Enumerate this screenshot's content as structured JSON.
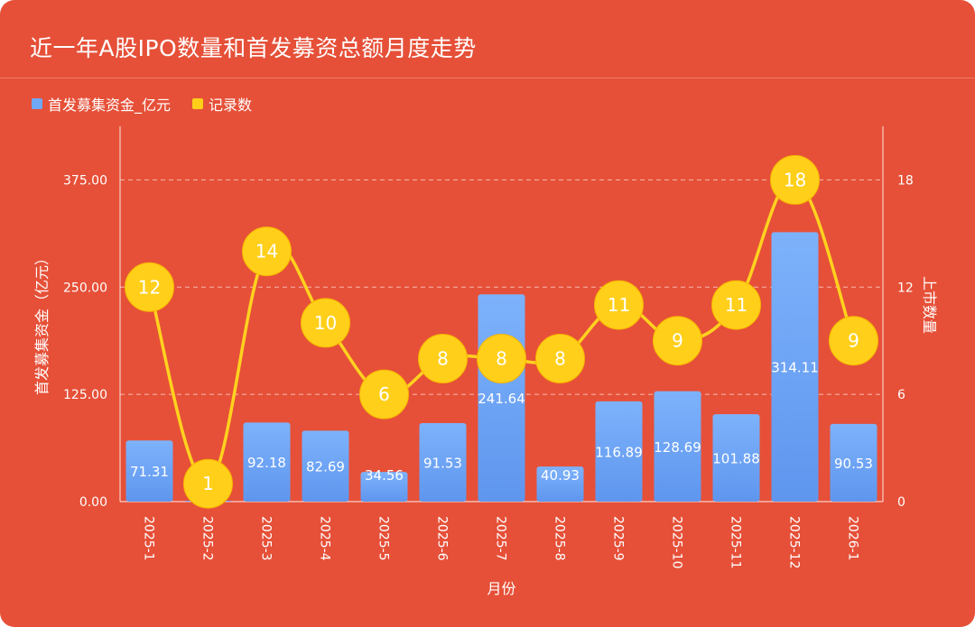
{
  "title": "近一年A股IPO数量和首发募资总额月度走势",
  "colors": {
    "background": "#e65038",
    "bar": "#6fa8f5",
    "line": "#ffd21f",
    "marker": "#ffcf1a",
    "text": "#ffffff"
  },
  "chart_data": {
    "type": "bar",
    "categories": [
      "2025-1",
      "2025-2",
      "2025-3",
      "2025-4",
      "2025-5",
      "2025-6",
      "2025-7",
      "2025-8",
      "2025-9",
      "2025-10",
      "2025-11",
      "2025-12",
      "2026-1"
    ],
    "series": [
      {
        "name": "首发募集资金_亿元",
        "type": "bar",
        "axis": "left",
        "values": [
          71.31,
          1,
          92.18,
          82.69,
          34.56,
          91.53,
          241.64,
          40.93,
          116.89,
          128.69,
          101.88,
          314.11,
          90.53
        ],
        "labels": [
          "71.31",
          "",
          "92.18",
          "82.69",
          "34.56",
          "91.53",
          "241.64",
          "40.93",
          "116.89",
          "128.69",
          "101.88",
          "314.11",
          "90.53"
        ]
      },
      {
        "name": "记录数",
        "type": "line",
        "axis": "right",
        "values": [
          12,
          1,
          14,
          10,
          6,
          8,
          8,
          8,
          11,
          9,
          11,
          18,
          9
        ],
        "labels": [
          "12",
          "1",
          "14",
          "10",
          "6",
          "8",
          "8",
          "8",
          "11",
          "9",
          "11",
          "18",
          "9"
        ]
      }
    ],
    "xlabel": "月份",
    "ylabel": "首发募集资金（亿元）",
    "y2label": "上市数量",
    "ylim": [
      0,
      437.5
    ],
    "y2lim": [
      0,
      21
    ],
    "yticks": [
      0,
      125,
      250,
      375
    ],
    "ytick_labels": [
      "0.00",
      "125.00",
      "250.00",
      "375.00"
    ],
    "y2ticks": [
      0,
      6,
      12,
      18
    ],
    "y2tick_labels": [
      "0",
      "6",
      "12",
      "18"
    ],
    "grid": true,
    "legend": "top-left"
  }
}
